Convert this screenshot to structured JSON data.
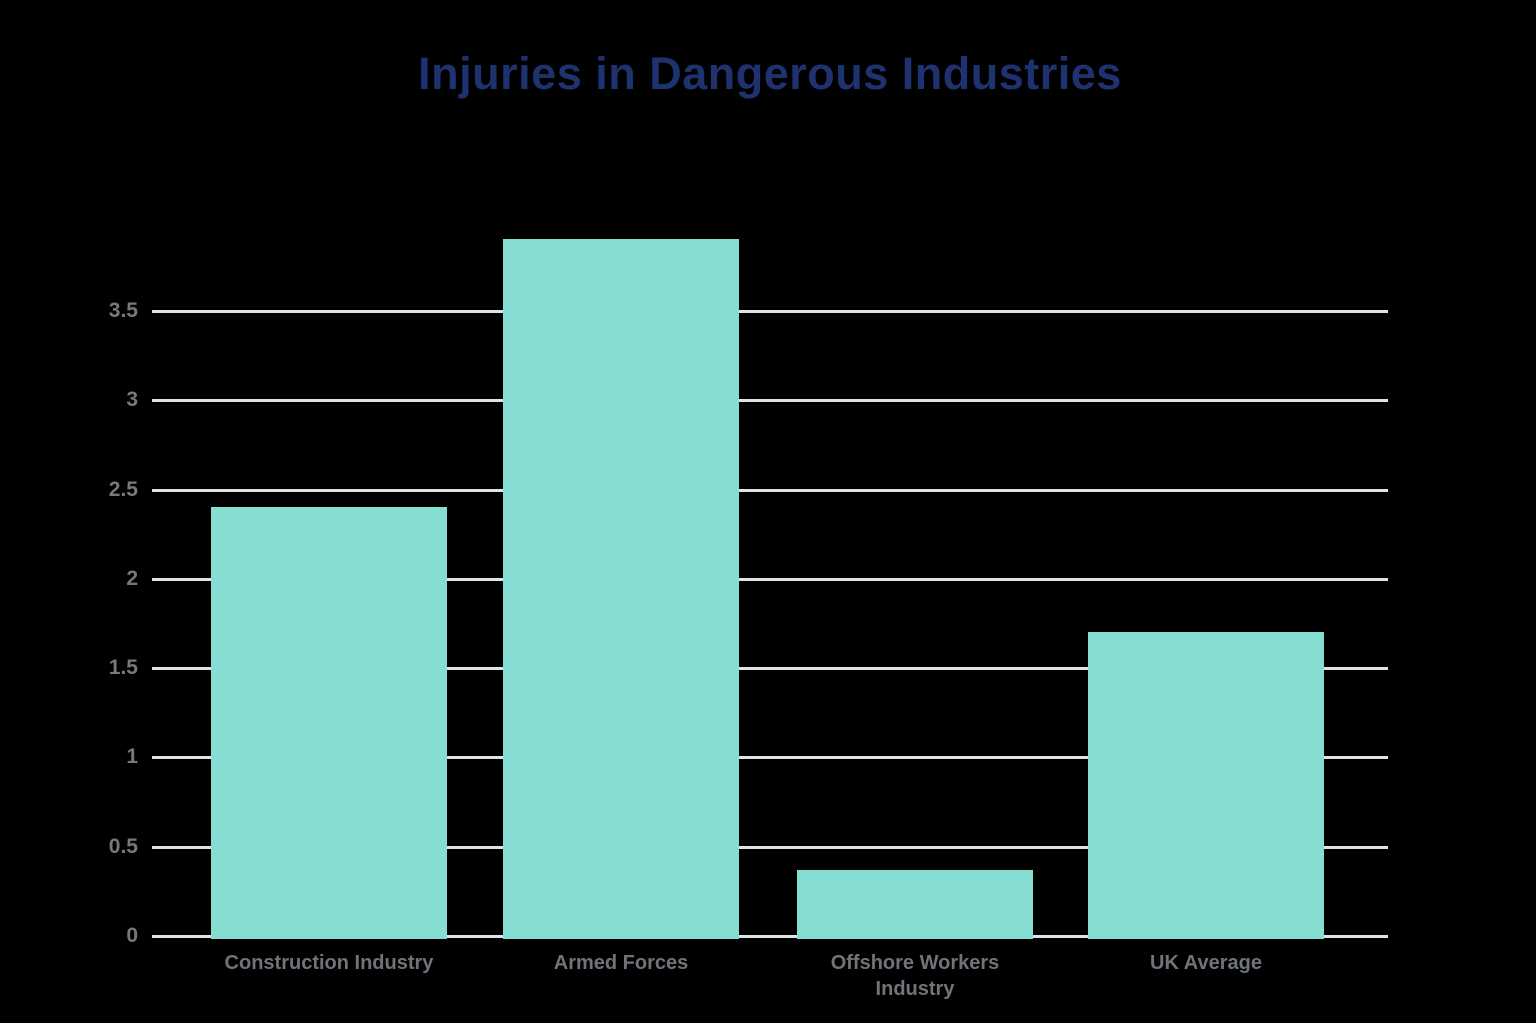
{
  "title": "Injuries in Dangerous Industries",
  "colors": {
    "background": "#000000",
    "title": "#1F3270",
    "bar": "#86DED3",
    "gridline": "#DCE3EA",
    "axis_line": "#DCE3EA",
    "y_tick_label": "#75797D",
    "x_label": "#6E747A"
  },
  "chart_data": {
    "type": "bar",
    "title": "Injuries in Dangerous Industries",
    "categories": [
      "Construction Industry",
      "Armed Forces",
      "Offshore Workers Industry",
      "UK Average"
    ],
    "values": [
      2.4,
      3.9,
      0.37,
      1.7
    ],
    "series": [
      {
        "name": "Injuries",
        "values": [
          2.4,
          3.9,
          0.37,
          1.7
        ]
      }
    ],
    "xlabel": "",
    "ylabel": "",
    "ylim": [
      0,
      4
    ],
    "ytick_labels": [
      "0",
      "0.5",
      "1",
      "1.5",
      "2",
      "2.5",
      "3",
      "3.5"
    ],
    "grid": "horizontal",
    "legend": "none",
    "bar_color": "#86DED3",
    "background_color": "#000000"
  }
}
